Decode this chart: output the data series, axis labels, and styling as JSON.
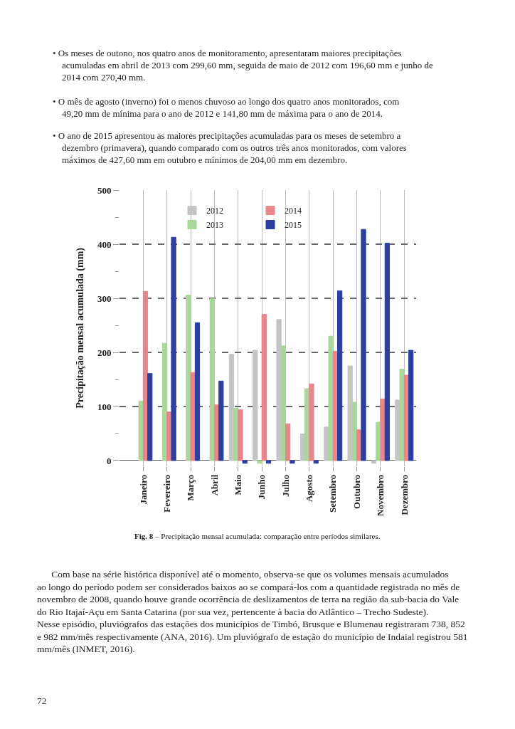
{
  "chart_data": {
    "type": "bar",
    "ylabel": "Precipitação mensal acumulada (mm)",
    "categories": [
      "Janeiro",
      "Fevereiro",
      "Março",
      "Abril",
      "Maio",
      "Junho",
      "Julho",
      "Agosto",
      "Setembro",
      "Outubro",
      "Novembro",
      "Dezembro"
    ],
    "series": [
      {
        "name": "2012",
        "color": "#c4c4c4",
        "values": [
          null,
          null,
          null,
          null,
          196.6,
          204,
          261,
          49.2,
          62,
          175,
          -5,
          112
        ]
      },
      {
        "name": "2013",
        "color": "#a9d69a",
        "values": [
          110,
          217,
          306,
          299.6,
          97,
          -5,
          212,
          133,
          230,
          108,
          71,
          169
        ]
      },
      {
        "name": "2014",
        "color": "#e8868c",
        "values": [
          313,
          90,
          163,
          103,
          94,
          270.4,
          68,
          141.8,
          202,
          57,
          114,
          158
        ]
      },
      {
        "name": "2015",
        "color": "#2b3fa0",
        "values": [
          161,
          413,
          255,
          147,
          -5,
          -5,
          -5,
          -5,
          314,
          427.6,
          402,
          204
        ]
      }
    ],
    "ylim": [
      -10,
      500
    ],
    "yticks": [
      0,
      {
        "value": 50,
        "label": null
      },
      100,
      {
        "value": 150,
        "label": null
      },
      200,
      {
        "value": 250,
        "label": null
      },
      300,
      {
        "value": 350,
        "label": null
      },
      400,
      {
        "value": 450,
        "label": null
      },
      500
    ],
    "grid": true,
    "legend": "top",
    "annotations": [
      "• Os meses de outono, nos quatro anos de monitoramento, apresentaram maiores precipitações acumuladas em abril de 2013 com 299,60 mm, seguida de maio de 2012 com 196,60 mm e junho de 2014 com 270,40 mm.",
      "• O mês de agosto (inverno) foi o menos chuvoso ao longo dos quatro anos monitorados, com 49,20 mm de mínima para o ano de 2012 e 141,80 mm de máxima para o ano de 2014.",
      "• O ano de 2015 apresentou as maiores precipitações acumuladas para os meses de setembro a dezembro (primavera), quando comparado com os outros três anos monitorados, com valores máximos de 427,60 mm em outubro e mínimos de 204,00 mm em dezembro.",
      "Fig. 8 – Precipitação mensal acumulada: comparação entre períodos similares.",
      "Com base na série histórica disponível até o momento, observa-se que os volumes mensais acumulados ao longo do período podem ser considerados baixos ao se compará-los com a quantidade registrada no mês de novembro de 2008, quando houve grande ocorrência de deslizamentos de terra na região da sub-bacia do Vale do Rio Itajaí-Açu em Santa Catarina (por sua vez, pertencente à bacia do Atlântico – Trecho Sudeste). Nesse episódio, pluviógrafos das estações dos municípios de Timbó, Brusque e Blumenau registraram 738, 852 e 982 mm/mês respectivamente (ANA, 2016). Um pluviógrafo de estação do município de Indaial registrou 581 mm/mês (INMET, 2016).",
      "72"
    ]
  }
}
